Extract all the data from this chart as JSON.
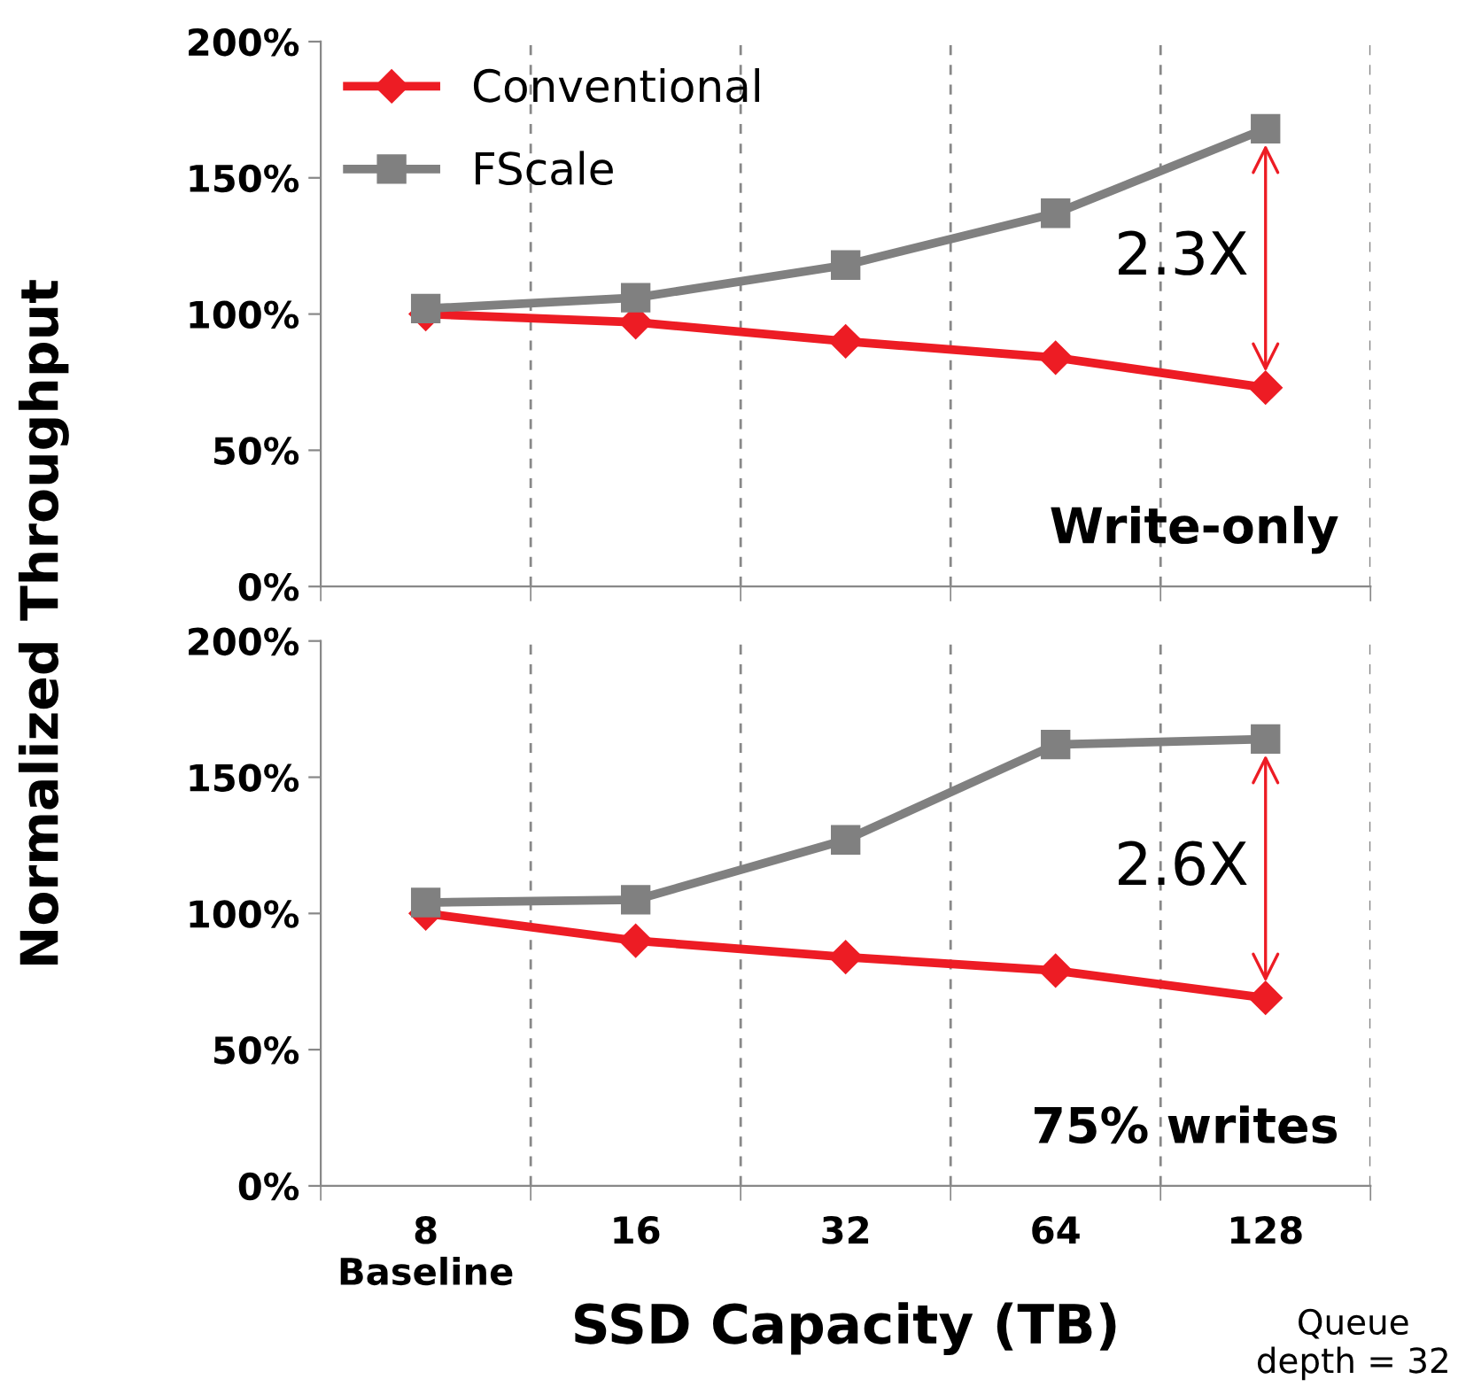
{
  "chart_data": [
    {
      "type": "line",
      "title": "Write-only",
      "ylabel": "Normalized Throughput",
      "categories": [
        "8",
        "16",
        "32",
        "64",
        "128"
      ],
      "series": [
        {
          "name": "Conventional",
          "color": "#ed1c24",
          "marker": "diamond",
          "values": [
            100,
            97,
            90,
            84,
            73
          ]
        },
        {
          "name": "FScale",
          "color": "#808080",
          "marker": "square",
          "values": [
            102,
            106,
            118,
            137,
            168
          ]
        }
      ],
      "ylim": [
        0,
        200
      ],
      "yticks": [
        {
          "value": 0,
          "label": "0%"
        },
        {
          "value": 50,
          "label": "50%"
        },
        {
          "value": 100,
          "label": "100%"
        },
        {
          "value": 150,
          "label": "150%"
        },
        {
          "value": 200,
          "label": "200%"
        }
      ],
      "grid": "x",
      "legend": "top left",
      "tick_labels": "y",
      "annotations": [
        "2.3X"
      ]
    },
    {
      "type": "line",
      "title": "75% writes",
      "xlabel": "SSD Capacity (TB)",
      "categories": [
        "8\nBaseline",
        "16",
        "32",
        "64",
        "128"
      ],
      "series": [
        {
          "color": "#ed1c24",
          "marker": "diamond",
          "values": [
            100,
            90,
            84,
            79,
            69
          ]
        },
        {
          "color": "#808080",
          "marker": "square",
          "values": [
            104,
            105,
            127,
            162,
            164
          ]
        }
      ],
      "ylim": [
        0,
        200
      ],
      "yticks": [
        {
          "value": 0,
          "label": "0%"
        },
        {
          "value": 50,
          "label": "50%"
        },
        {
          "value": 100,
          "label": "100%"
        },
        {
          "value": 150,
          "label": "150%"
        },
        {
          "value": 200,
          "label": "200%"
        }
      ],
      "grid": "x",
      "legend": false,
      "annotations": [
        "2.6X",
        "Queue\ndepth = 32"
      ]
    }
  ]
}
